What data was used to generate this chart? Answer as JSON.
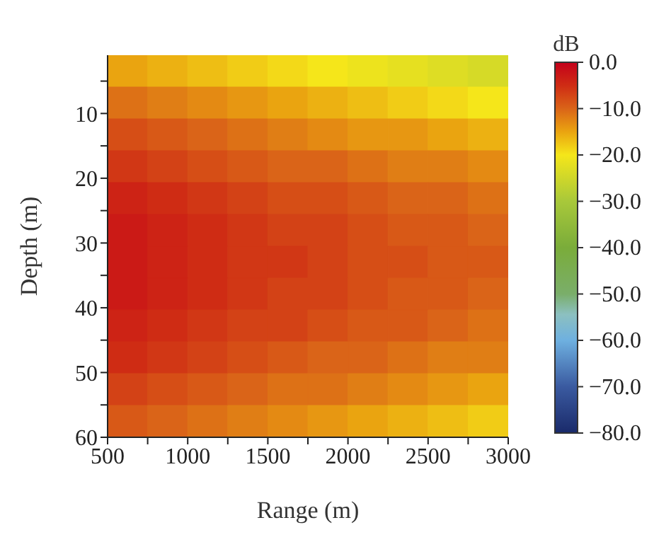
{
  "chart_data": {
    "type": "heatmap",
    "xlabel": "Range (m)",
    "ylabel": "Depth (m)",
    "clabel": "dB",
    "xlim": [
      500,
      3000
    ],
    "xticks": [
      500,
      {
        "value": 750,
        "label": null
      },
      1000,
      {
        "value": 1250,
        "label": null
      },
      1500,
      {
        "value": 1750,
        "label": null
      },
      2000,
      {
        "value": 2250,
        "label": null
      },
      2500,
      {
        "value": 2750,
        "label": null
      },
      3000
    ],
    "ylim": [
      60,
      1
    ],
    "yticks": [
      {
        "value": 5,
        "label": null
      },
      10,
      {
        "value": 15,
        "label": null
      },
      20,
      {
        "value": 25,
        "label": null
      },
      30,
      {
        "value": 35,
        "label": null
      },
      40,
      {
        "value": 45,
        "label": null
      },
      50,
      {
        "value": 55,
        "label": null
      },
      60
    ],
    "clim": [
      -80,
      0
    ],
    "cticks": [
      {
        "value": 0,
        "label": "0.0"
      },
      {
        "value": -10,
        "label": "−10.0"
      },
      {
        "value": -20,
        "label": "−20.0"
      },
      {
        "value": -30,
        "label": "−30.0"
      },
      {
        "value": -40,
        "label": "−40.0"
      },
      {
        "value": -50,
        "label": "−50.0"
      },
      {
        "value": -60,
        "label": "−60.0"
      },
      {
        "value": -70,
        "label": "−70.0"
      },
      {
        "value": -80,
        "label": "−80.0"
      }
    ],
    "cells": [
      [
        -15,
        -16,
        -17,
        -18,
        -19,
        -20,
        -21,
        -22,
        -23,
        -24
      ],
      [
        -11,
        -12,
        -13,
        -14,
        -15,
        -16,
        -17,
        -18,
        -19,
        -20
      ],
      [
        -8,
        -9,
        -10,
        -11,
        -12,
        -13,
        -14,
        -14,
        -15,
        -16
      ],
      [
        -6,
        -7,
        -8,
        -9,
        -10,
        -10,
        -11,
        -12,
        -12,
        -13
      ],
      [
        -4,
        -5,
        -6,
        -7,
        -8,
        -8,
        -9,
        -10,
        -10,
        -11
      ],
      [
        -3,
        -4,
        -5,
        -6,
        -7,
        -7,
        -8,
        -9,
        -9,
        -10
      ],
      [
        -3,
        -4,
        -5,
        -6,
        -6,
        -7,
        -8,
        -8,
        -9,
        -9
      ],
      [
        -3,
        -4,
        -5,
        -6,
        -7,
        -7,
        -8,
        -9,
        -9,
        -10
      ],
      [
        -4,
        -5,
        -6,
        -7,
        -7,
        -8,
        -9,
        -9,
        -10,
        -11
      ],
      [
        -5,
        -6,
        -7,
        -8,
        -9,
        -10,
        -10,
        -11,
        -12,
        -12
      ],
      [
        -7,
        -8,
        -9,
        -10,
        -11,
        -11,
        -12,
        -13,
        -14,
        -15
      ],
      [
        -9,
        -10,
        -11,
        -12,
        -13,
        -14,
        -15,
        -16,
        -17,
        -18
      ]
    ]
  }
}
